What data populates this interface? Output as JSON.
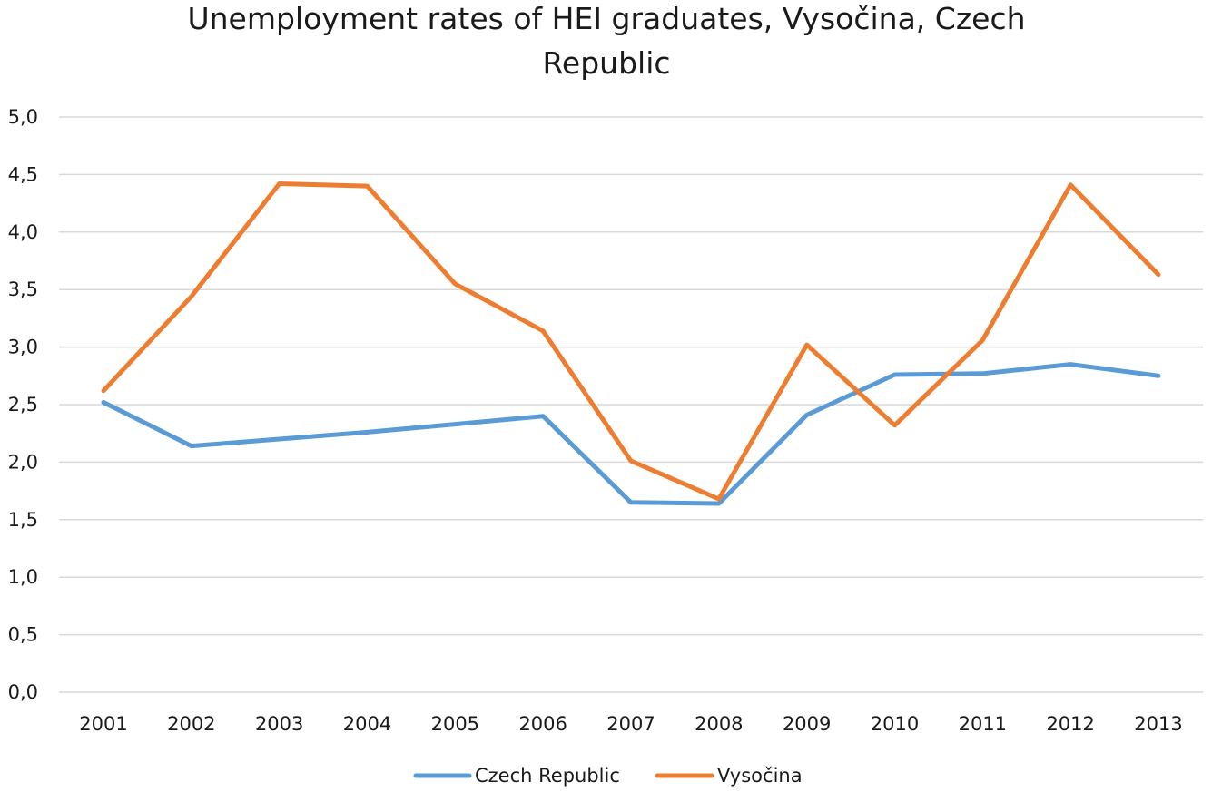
{
  "chart_data": {
    "type": "line",
    "title_lines": [
      "Unemployment rates of HEI graduates, Vysočina, Czech",
      "Republic"
    ],
    "x": [
      "2001",
      "2002",
      "2003",
      "2004",
      "2005",
      "2006",
      "2007",
      "2008",
      "2009",
      "2010",
      "2011",
      "2012",
      "2013"
    ],
    "yticks": [
      "0,0",
      "0,5",
      "1,0",
      "1,5",
      "2,0",
      "2,5",
      "3,0",
      "3,5",
      "4,0",
      "4,5",
      "5,0"
    ],
    "ylim": [
      0,
      5
    ],
    "grid": true,
    "legend_position": "bottom",
    "series": [
      {
        "name": "Czech Republic",
        "color": "#5b9bd5",
        "values": [
          2.52,
          2.14,
          2.2,
          2.26,
          2.33,
          2.4,
          1.65,
          1.64,
          2.41,
          2.76,
          2.77,
          2.85,
          2.75
        ]
      },
      {
        "name": "Vysočina",
        "color": "#ed7d31",
        "values": [
          2.62,
          3.44,
          4.42,
          4.4,
          3.55,
          3.14,
          2.01,
          1.68,
          3.02,
          2.32,
          3.06,
          4.41,
          3.63
        ]
      }
    ]
  }
}
